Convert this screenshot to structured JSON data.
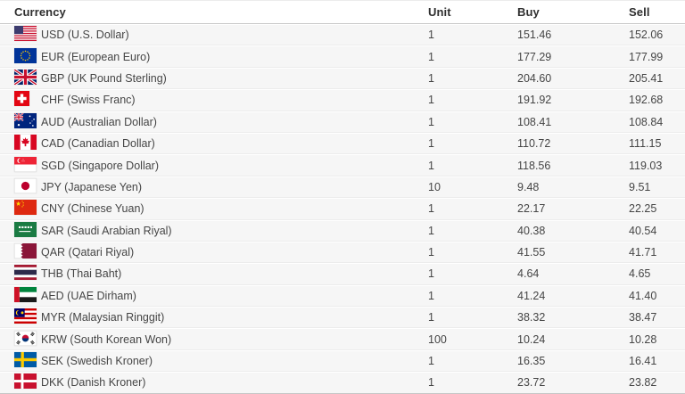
{
  "table": {
    "columns": [
      {
        "key": "currency",
        "label": "Currency"
      },
      {
        "key": "unit",
        "label": "Unit"
      },
      {
        "key": "buy",
        "label": "Buy"
      },
      {
        "key": "sell",
        "label": "Sell"
      }
    ],
    "rows": [
      {
        "code": "USD",
        "label": "USD (U.S. Dollar)",
        "flag_icon": "usd-flag-icon",
        "unit": "1",
        "buy": "151.46",
        "sell": "152.06"
      },
      {
        "code": "EUR",
        "label": "EUR (European Euro)",
        "flag_icon": "eur-flag-icon",
        "unit": "1",
        "buy": "177.29",
        "sell": "177.99"
      },
      {
        "code": "GBP",
        "label": "GBP (UK Pound Sterling)",
        "flag_icon": "gbp-flag-icon",
        "unit": "1",
        "buy": "204.60",
        "sell": "205.41"
      },
      {
        "code": "CHF",
        "label": "CHF (Swiss Franc)",
        "flag_icon": "chf-flag-icon",
        "unit": "1",
        "buy": "191.92",
        "sell": "192.68"
      },
      {
        "code": "AUD",
        "label": "AUD (Australian Dollar)",
        "flag_icon": "aud-flag-icon",
        "unit": "1",
        "buy": "108.41",
        "sell": "108.84"
      },
      {
        "code": "CAD",
        "label": "CAD (Canadian Dollar)",
        "flag_icon": "cad-flag-icon",
        "unit": "1",
        "buy": "110.72",
        "sell": "111.15"
      },
      {
        "code": "SGD",
        "label": "SGD (Singapore Dollar)",
        "flag_icon": "sgd-flag-icon",
        "unit": "1",
        "buy": "118.56",
        "sell": "119.03"
      },
      {
        "code": "JPY",
        "label": "JPY (Japanese Yen)",
        "flag_icon": "jpy-flag-icon",
        "unit": "10",
        "buy": "9.48",
        "sell": "9.51"
      },
      {
        "code": "CNY",
        "label": "CNY (Chinese Yuan)",
        "flag_icon": "cny-flag-icon",
        "unit": "1",
        "buy": "22.17",
        "sell": "22.25"
      },
      {
        "code": "SAR",
        "label": "SAR (Saudi Arabian Riyal)",
        "flag_icon": "sar-flag-icon",
        "unit": "1",
        "buy": "40.38",
        "sell": "40.54"
      },
      {
        "code": "QAR",
        "label": "QAR (Qatari Riyal)",
        "flag_icon": "qar-flag-icon",
        "unit": "1",
        "buy": "41.55",
        "sell": "41.71"
      },
      {
        "code": "THB",
        "label": "THB (Thai Baht)",
        "flag_icon": "thb-flag-icon",
        "unit": "1",
        "buy": "4.64",
        "sell": "4.65"
      },
      {
        "code": "AED",
        "label": "AED (UAE Dirham)",
        "flag_icon": "aed-flag-icon",
        "unit": "1",
        "buy": "41.24",
        "sell": "41.40"
      },
      {
        "code": "MYR",
        "label": "MYR (Malaysian Ringgit)",
        "flag_icon": "myr-flag-icon",
        "unit": "1",
        "buy": "38.32",
        "sell": "38.47"
      },
      {
        "code": "KRW",
        "label": "KRW (South Korean Won)",
        "flag_icon": "krw-flag-icon",
        "unit": "100",
        "buy": "10.24",
        "sell": "10.28"
      },
      {
        "code": "SEK",
        "label": "SEK (Swedish Kroner)",
        "flag_icon": "sek-flag-icon",
        "unit": "1",
        "buy": "16.35",
        "sell": "16.41"
      },
      {
        "code": "DKK",
        "label": "DKK (Danish Kroner)",
        "flag_icon": "dkk-flag-icon",
        "unit": "1",
        "buy": "23.72",
        "sell": "23.82"
      }
    ]
  },
  "colors": {
    "header_text": "#2e2e2e",
    "body_text": "#454545",
    "row_bg": "#f6f6f6",
    "divider": "#ececec",
    "table_border": "#c9c9c9"
  }
}
